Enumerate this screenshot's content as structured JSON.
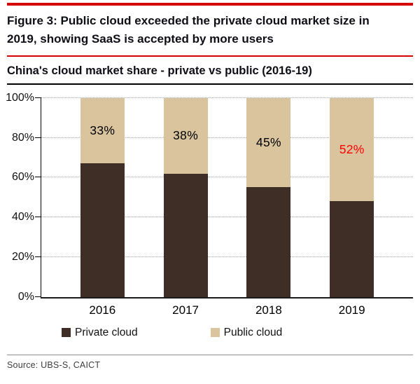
{
  "figure_title": "Figure 3: Public cloud exceeded the private cloud market size in 2019, showing SaaS is accepted by more users",
  "source_text": "Source:  UBS-S, CAICT",
  "colors": {
    "accent_red": "#d40000",
    "highlight_red": "#ff0000",
    "private_cloud": "#3e2e26",
    "public_cloud": "#d9c49d"
  },
  "chart_data": {
    "type": "stacked-bar",
    "title": "China's cloud market  share - private vs public (2016-19)",
    "categories": [
      "2016",
      "2017",
      "2018",
      "2019"
    ],
    "series": [
      {
        "name": "Private cloud",
        "color": "#3e2e26",
        "values": [
          67,
          62,
          55,
          48
        ]
      },
      {
        "name": "Public cloud",
        "color": "#d9c49d",
        "values": [
          33,
          38,
          45,
          52
        ]
      }
    ],
    "segment_labels": {
      "on_series": "Public cloud",
      "texts": [
        "33%",
        "38%",
        "45%",
        "52%"
      ],
      "colors": [
        "#000000",
        "#000000",
        "#000000",
        "#ff0000"
      ]
    },
    "ylim": [
      0,
      100
    ],
    "tick_values": [
      0,
      20,
      40,
      60,
      80,
      100
    ],
    "tick_labels": [
      "0%",
      "20%",
      "40%",
      "60%",
      "80%",
      "100%"
    ],
    "grid": true,
    "legend_position": "bottom"
  }
}
